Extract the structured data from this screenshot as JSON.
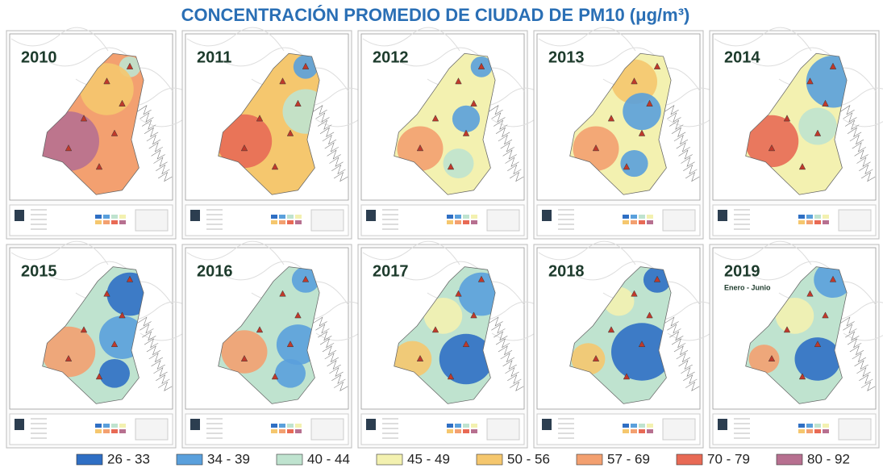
{
  "title": "CONCENTRACIÓN PROMEDIO DE CIUDAD DE PM10 (μg/m³)",
  "panels": [
    {
      "year": "2010"
    },
    {
      "year": "2011"
    },
    {
      "year": "2012"
    },
    {
      "year": "2013"
    },
    {
      "year": "2014"
    },
    {
      "year": "2015"
    },
    {
      "year": "2016"
    },
    {
      "year": "2017"
    },
    {
      "year": "2018"
    },
    {
      "year": "2019",
      "subtitle": "Enero - Junio"
    }
  ],
  "legend": {
    "items": [
      {
        "label": "26 - 33",
        "color": "#2f6fc4"
      },
      {
        "label": "34 - 39",
        "color": "#5aa0dc"
      },
      {
        "label": "40 - 44",
        "color": "#bfe3cf"
      },
      {
        "label": "45 - 49",
        "color": "#f3f1b0"
      },
      {
        "label": "50 - 56",
        "color": "#f5c76e"
      },
      {
        "label": "57 - 69",
        "color": "#f3a070"
      },
      {
        "label": "70 - 79",
        "color": "#e86a55"
      },
      {
        "label": "80 - 92",
        "color": "#b77090"
      }
    ]
  }
}
